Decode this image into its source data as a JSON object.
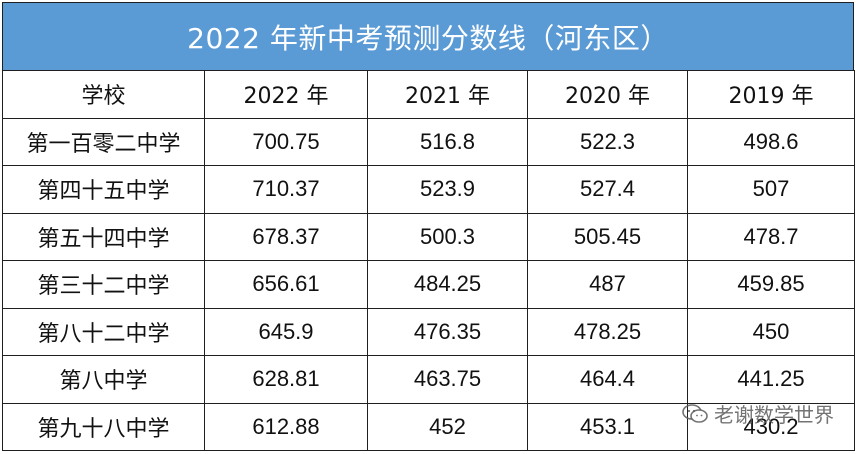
{
  "colors": {
    "header_bg": "#5b9bd5",
    "header_text": "#ffffff",
    "border": "#1f1f1f"
  },
  "title": "2022 年新中考预测分数线（河东区）",
  "columns": [
    "学校",
    "2022 年",
    "2021 年",
    "2020 年",
    "2019 年"
  ],
  "rows": [
    {
      "school": "第一百零二中学",
      "y2022": "700.75",
      "y2021": "516.8",
      "y2020": "522.3",
      "y2019": "498.6"
    },
    {
      "school": "第四十五中学",
      "y2022": "710.37",
      "y2021": "523.9",
      "y2020": "527.4",
      "y2019": "507"
    },
    {
      "school": "第五十四中学",
      "y2022": "678.37",
      "y2021": "500.3",
      "y2020": "505.45",
      "y2019": "478.7"
    },
    {
      "school": "第三十二中学",
      "y2022": "656.61",
      "y2021": "484.25",
      "y2020": "487",
      "y2019": "459.85"
    },
    {
      "school": "第八十二中学",
      "y2022": "645.9",
      "y2021": "476.35",
      "y2020": "478.25",
      "y2019": "450"
    },
    {
      "school": "第八中学",
      "y2022": "628.81",
      "y2021": "463.75",
      "y2020": "464.4",
      "y2019": "441.25"
    },
    {
      "school": "第九十八中学",
      "y2022": "612.88",
      "y2021": "452",
      "y2020": "453.1",
      "y2019": "430.2"
    }
  ],
  "watermark": {
    "text": "老谢数学世界",
    "icon": "wechat-icon"
  }
}
